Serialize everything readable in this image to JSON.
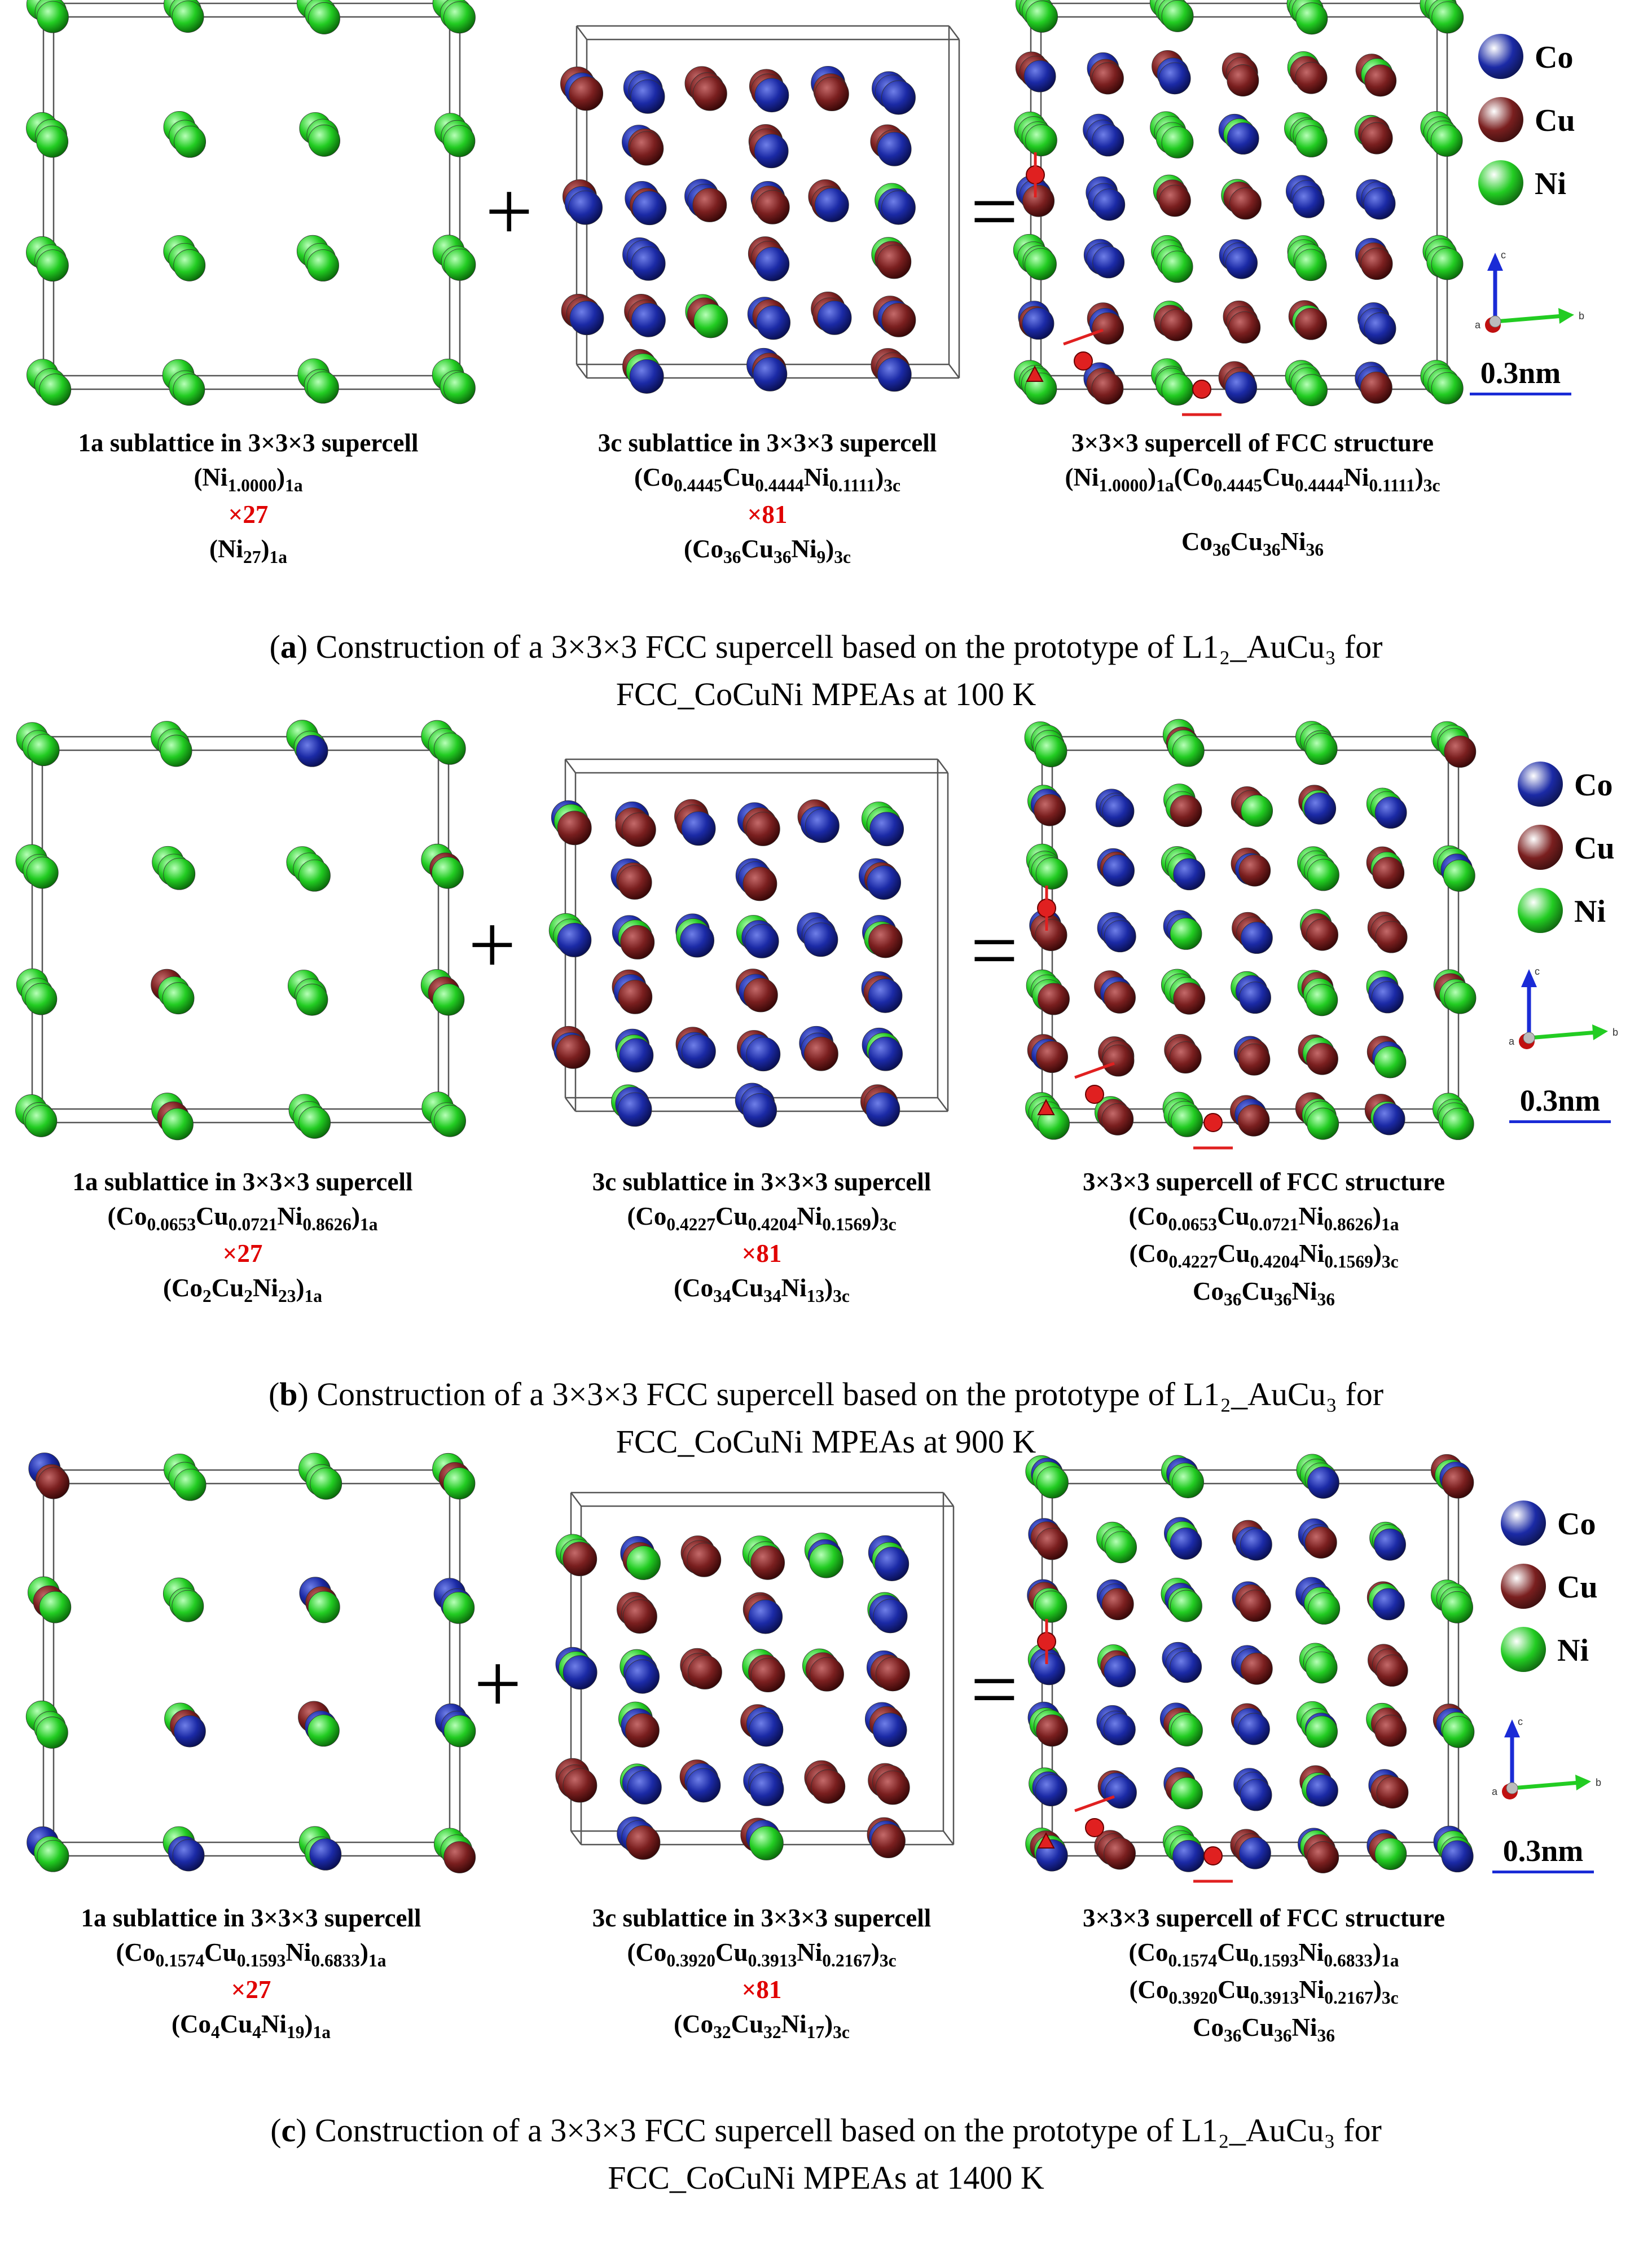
{
  "colors": {
    "Co": "#1b2aa6",
    "Cu": "#7a1f1f",
    "Ni": "#22cc22",
    "arrow": "#e02020",
    "axis_c": "#1a2bd6",
    "axis_b": "#22cc22",
    "axis_a": "#c01010"
  },
  "legend": [
    {
      "el": "Co",
      "label": "Co"
    },
    {
      "el": "Cu",
      "label": "Cu"
    },
    {
      "el": "Ni",
      "label": "Ni"
    }
  ],
  "axes": {
    "c": "c",
    "b": "b",
    "a": "a"
  },
  "scale": "0.3nm",
  "panels": [
    {
      "label": "a",
      "caption_rest": " Construction of a 3×3×3 FCC supercell based on the prototype of L1₂_AuCu₃ for",
      "caption_line2": "FCC_CoCuNi MPEAs at 100 K",
      "c1": {
        "title": "1a sublattice in 3×3×3 supercell",
        "formula": [
          [
            {
              "t": "(Ni"
            },
            {
              "sub": "1.0000"
            },
            {
              "t": ")"
            },
            {
              "sub": "1a"
            }
          ]
        ],
        "mult": "×27",
        "count": [
          {
            "t": "(Ni"
          },
          {
            "sub": "27"
          },
          {
            "t": ")"
          },
          {
            "sub": "1a"
          }
        ]
      },
      "c2": {
        "title": "3c sublattice in 3×3×3 supercell",
        "formula": [
          [
            {
              "t": "(Co"
            },
            {
              "sub": "0.4445"
            },
            {
              "t": "Cu"
            },
            {
              "sub": "0.4444"
            },
            {
              "t": "Ni"
            },
            {
              "sub": "0.1111"
            },
            {
              "t": ")"
            },
            {
              "sub": "3c"
            }
          ]
        ],
        "mult": "×81",
        "count": [
          {
            "t": "(Co"
          },
          {
            "sub": "36"
          },
          {
            "t": "Cu"
          },
          {
            "sub": "36"
          },
          {
            "t": "Ni"
          },
          {
            "sub": "9"
          },
          {
            "t": ")"
          },
          {
            "sub": "3c"
          }
        ]
      },
      "c3": {
        "title": "3×3×3 supercell of FCC structure",
        "formula": [
          [
            {
              "t": "(Ni"
            },
            {
              "sub": "1.0000"
            },
            {
              "t": ")"
            },
            {
              "sub": "1a"
            },
            {
              "t": "(Co"
            },
            {
              "sub": "0.4445"
            },
            {
              "t": "Cu"
            },
            {
              "sub": "0.4444"
            },
            {
              "t": "Ni"
            },
            {
              "sub": "0.1111"
            },
            {
              "t": ")"
            },
            {
              "sub": "3c"
            }
          ]
        ],
        "count": [
          {
            "t": "Co"
          },
          {
            "sub": "36"
          },
          {
            "t": "Cu"
          },
          {
            "sub": "36"
          },
          {
            "t": "Ni"
          },
          {
            "sub": "36"
          }
        ]
      }
    },
    {
      "label": "b",
      "caption_rest": " Construction of a 3×3×3 FCC supercell based on the prototype of L1₂_AuCu₃ for",
      "caption_line2": "FCC_CoCuNi MPEAs at 900 K",
      "c1": {
        "title": "1a sublattice in 3×3×3 supercell",
        "formula": [
          [
            {
              "t": "(Co"
            },
            {
              "sub": "0.0653"
            },
            {
              "t": "Cu"
            },
            {
              "sub": "0.0721"
            },
            {
              "t": "Ni"
            },
            {
              "sub": "0.8626"
            },
            {
              "t": ")"
            },
            {
              "sub": "1a"
            }
          ]
        ],
        "mult": "×27",
        "count": [
          {
            "t": "(Co"
          },
          {
            "sub": "2"
          },
          {
            "t": "Cu"
          },
          {
            "sub": "2"
          },
          {
            "t": "Ni"
          },
          {
            "sub": "23"
          },
          {
            "t": ")"
          },
          {
            "sub": "1a"
          }
        ]
      },
      "c2": {
        "title": "3c sublattice in 3×3×3 supercell",
        "formula": [
          [
            {
              "t": "(Co"
            },
            {
              "sub": "0.4227"
            },
            {
              "t": "Cu"
            },
            {
              "sub": "0.4204"
            },
            {
              "t": "Ni"
            },
            {
              "sub": "0.1569"
            },
            {
              "t": ")"
            },
            {
              "sub": "3c"
            }
          ]
        ],
        "mult": "×81",
        "count": [
          {
            "t": "(Co"
          },
          {
            "sub": "34"
          },
          {
            "t": "Cu"
          },
          {
            "sub": "34"
          },
          {
            "t": "Ni"
          },
          {
            "sub": "13"
          },
          {
            "t": ")"
          },
          {
            "sub": "3c"
          }
        ]
      },
      "c3": {
        "title": "3×3×3 supercell of FCC structure",
        "formula": [
          [
            {
              "t": "(Co"
            },
            {
              "sub": "0.0653"
            },
            {
              "t": "Cu"
            },
            {
              "sub": "0.0721"
            },
            {
              "t": "Ni"
            },
            {
              "sub": "0.8626"
            },
            {
              "t": ")"
            },
            {
              "sub": "1a"
            }
          ],
          [
            {
              "t": "(Co"
            },
            {
              "sub": "0.4227"
            },
            {
              "t": "Cu"
            },
            {
              "sub": "0.4204"
            },
            {
              "t": "Ni"
            },
            {
              "sub": "0.1569"
            },
            {
              "t": ")"
            },
            {
              "sub": "3c"
            }
          ]
        ],
        "count": [
          {
            "t": "Co"
          },
          {
            "sub": "36"
          },
          {
            "t": "Cu"
          },
          {
            "sub": "36"
          },
          {
            "t": "Ni"
          },
          {
            "sub": "36"
          }
        ]
      }
    },
    {
      "label": "c",
      "caption_rest": " Construction of a 3×3×3 FCC supercell based on the prototype of L1₂_AuCu₃ for",
      "caption_line2": "FCC_CoCuNi MPEAs at 1400 K",
      "c1": {
        "title": "1a sublattice in 3×3×3 supercell",
        "formula": [
          [
            {
              "t": "(Co"
            },
            {
              "sub": "0.1574"
            },
            {
              "t": "Cu"
            },
            {
              "sub": "0.1593"
            },
            {
              "t": "Ni"
            },
            {
              "sub": "0.6833"
            },
            {
              "t": ")"
            },
            {
              "sub": "1a"
            }
          ]
        ],
        "mult": "×27",
        "count": [
          {
            "t": "(Co"
          },
          {
            "sub": "4"
          },
          {
            "t": "Cu"
          },
          {
            "sub": "4"
          },
          {
            "t": "Ni"
          },
          {
            "sub": "19"
          },
          {
            "t": ")"
          },
          {
            "sub": "1a"
          }
        ]
      },
      "c2": {
        "title": "3c sublattice in 3×3×3 supercell",
        "formula": [
          [
            {
              "t": "(Co"
            },
            {
              "sub": "0.3920"
            },
            {
              "t": "Cu"
            },
            {
              "sub": "0.3913"
            },
            {
              "t": "Ni"
            },
            {
              "sub": "0.2167"
            },
            {
              "t": ")"
            },
            {
              "sub": "3c"
            }
          ]
        ],
        "mult": "×81",
        "count": [
          {
            "t": "(Co"
          },
          {
            "sub": "32"
          },
          {
            "t": "Cu"
          },
          {
            "sub": "32"
          },
          {
            "t": "Ni"
          },
          {
            "sub": "17"
          },
          {
            "t": ")"
          },
          {
            "sub": "3c"
          }
        ]
      },
      "c3": {
        "title": "3×3×3 supercell of FCC structure",
        "formula": [
          [
            {
              "t": "(Co"
            },
            {
              "sub": "0.1574"
            },
            {
              "t": "Cu"
            },
            {
              "sub": "0.1593"
            },
            {
              "t": "Ni"
            },
            {
              "sub": "0.6833"
            },
            {
              "t": ")"
            },
            {
              "sub": "1a"
            }
          ],
          [
            {
              "t": "(Co"
            },
            {
              "sub": "0.3920"
            },
            {
              "t": "Cu"
            },
            {
              "sub": "0.3913"
            },
            {
              "t": "Ni"
            },
            {
              "sub": "0.2167"
            },
            {
              "t": ")"
            },
            {
              "sub": "3c"
            }
          ]
        ],
        "count": [
          {
            "t": "Co"
          },
          {
            "sub": "36"
          },
          {
            "t": "Cu"
          },
          {
            "sub": "36"
          },
          {
            "t": "Ni"
          },
          {
            "sub": "36"
          }
        ]
      }
    }
  ]
}
